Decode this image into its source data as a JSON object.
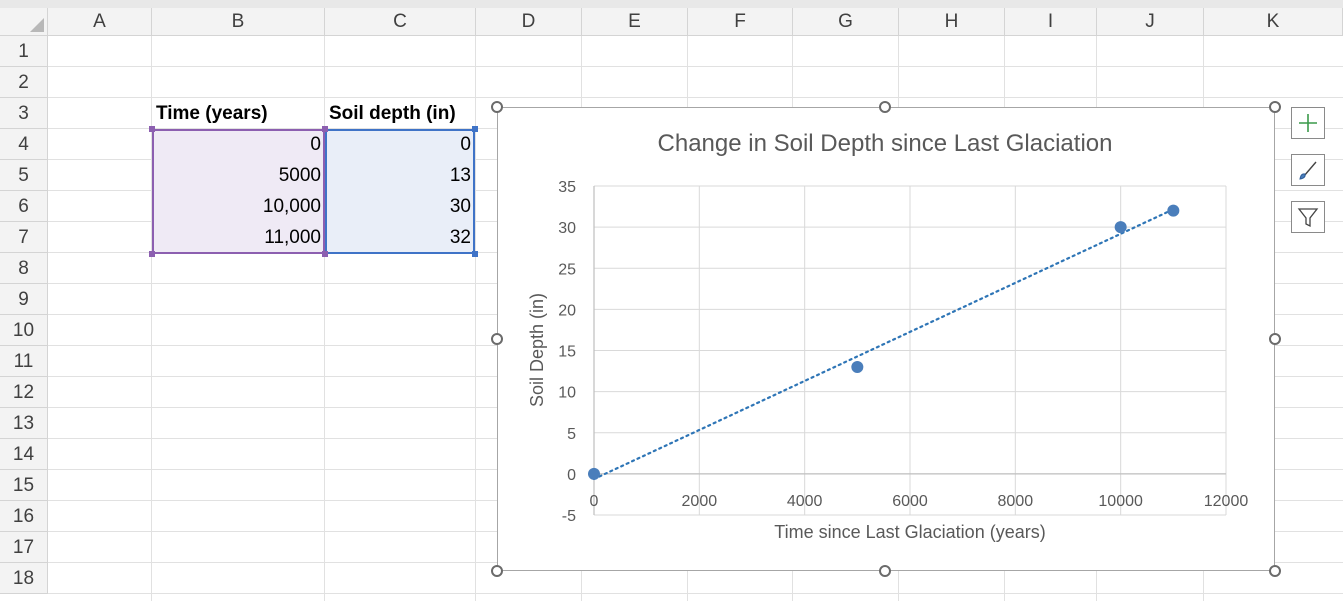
{
  "sheet": {
    "columns": [
      "A",
      "B",
      "C",
      "D",
      "E",
      "F",
      "G",
      "H",
      "I",
      "J",
      "K"
    ],
    "rows": [
      "1",
      "2",
      "3",
      "4",
      "5",
      "6",
      "7",
      "8",
      "9",
      "10",
      "11",
      "12",
      "13",
      "14",
      "15",
      "16",
      "17",
      "18"
    ],
    "table": {
      "header_time": "Time (years)",
      "header_depth": "Soil depth (in)",
      "rows": [
        {
          "time": "0",
          "depth": "0"
        },
        {
          "time": "5000",
          "depth": "13"
        },
        {
          "time": "10,000",
          "depth": "30"
        },
        {
          "time": "11,000",
          "depth": "32"
        }
      ]
    }
  },
  "chart_tools": {
    "add_element": "plus-icon",
    "styles": "brush-icon",
    "filters": "funnel-icon"
  },
  "colors": {
    "marker": "#4a7ebb",
    "trendline": "#2e75b6",
    "selection_b": "#8c5fb0",
    "selection_c": "#3f73c7"
  },
  "chart_data": {
    "type": "scatter",
    "title": "Change in Soil Depth since Last Glaciation",
    "xlabel": "Time since Last Glaciation (years)",
    "ylabel": "Soil Depth (in)",
    "xlim": [
      0,
      12000
    ],
    "ylim": [
      -5,
      35
    ],
    "xticks": [
      "0",
      "2000",
      "4000",
      "6000",
      "8000",
      "10000",
      "12000"
    ],
    "yticks": [
      "-5",
      "0",
      "5",
      "10",
      "15",
      "20",
      "25",
      "30",
      "35"
    ],
    "grid": true,
    "legend": "none",
    "trendline": "linear, dotted",
    "series": [
      {
        "x": [
          0,
          5000,
          10000,
          11000
        ],
        "y": [
          0,
          13,
          30,
          32
        ]
      }
    ]
  }
}
